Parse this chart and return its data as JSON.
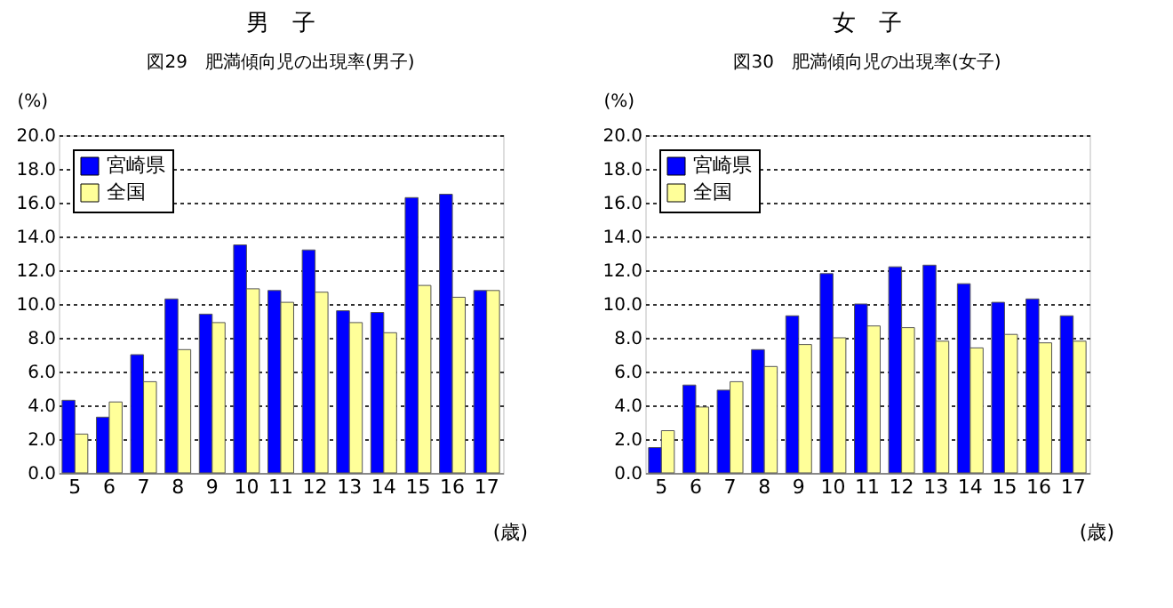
{
  "chart_data": [
    {
      "type": "bar",
      "title": "男　子",
      "subtitle": "図29　肥満傾向児の出現率(男子)",
      "ylabel": "(%)",
      "xlabel": "(歳)",
      "categories": [
        "5",
        "6",
        "7",
        "8",
        "9",
        "10",
        "11",
        "12",
        "13",
        "14",
        "15",
        "16",
        "17"
      ],
      "series": [
        {
          "name": "宮崎県",
          "color": "#0000ff",
          "values": [
            4.3,
            3.3,
            7.0,
            10.3,
            9.4,
            13.5,
            10.8,
            13.2,
            9.6,
            9.5,
            16.3,
            16.5,
            10.8
          ]
        },
        {
          "name": "全国",
          "color": "#ffff99",
          "values": [
            2.3,
            4.2,
            5.4,
            7.3,
            8.9,
            10.9,
            10.1,
            10.7,
            8.9,
            8.3,
            11.1,
            10.4,
            10.8
          ]
        }
      ],
      "ylim": [
        0,
        20
      ],
      "yticks": [
        {
          "value": 0,
          "label": "0.0"
        },
        {
          "value": 2,
          "label": "2.0"
        },
        {
          "value": 4,
          "label": "4.0"
        },
        {
          "value": 6,
          "label": "6.0"
        },
        {
          "value": 8,
          "label": "8.0"
        },
        {
          "value": 10,
          "label": "10.0"
        },
        {
          "value": 12,
          "label": "12.0"
        },
        {
          "value": 14,
          "label": "14.0"
        },
        {
          "value": 16,
          "label": "16.0"
        },
        {
          "value": 18,
          "label": "18.0"
        },
        {
          "value": 20,
          "label": "20.0"
        }
      ],
      "grid": "y",
      "legend": "top left"
    },
    {
      "type": "bar",
      "title": "女　子",
      "subtitle": "図30　肥満傾向児の出現率(女子)",
      "ylabel": "(%)",
      "xlabel": "(歳)",
      "categories": [
        "5",
        "6",
        "7",
        "8",
        "9",
        "10",
        "11",
        "12",
        "13",
        "14",
        "15",
        "16",
        "17"
      ],
      "series": [
        {
          "name": "宮崎県",
          "color": "#0000ff",
          "values": [
            1.5,
            5.2,
            4.9,
            7.3,
            9.3,
            11.8,
            10.0,
            12.2,
            12.3,
            11.2,
            10.1,
            10.3,
            9.3
          ]
        },
        {
          "name": "全国",
          "color": "#ffff99",
          "values": [
            2.5,
            3.9,
            5.4,
            6.3,
            7.6,
            8.0,
            8.7,
            8.6,
            7.8,
            7.4,
            8.2,
            7.7,
            7.8
          ]
        }
      ],
      "ylim": [
        0,
        20
      ],
      "yticks": [
        {
          "value": 0,
          "label": "0.0"
        },
        {
          "value": 2,
          "label": "2.0"
        },
        {
          "value": 4,
          "label": "4.0"
        },
        {
          "value": 6,
          "label": "6.0"
        },
        {
          "value": 8,
          "label": "8.0"
        },
        {
          "value": 10,
          "label": "10.0"
        },
        {
          "value": 12,
          "label": "12.0"
        },
        {
          "value": 14,
          "label": "14.0"
        },
        {
          "value": 16,
          "label": "16.0"
        },
        {
          "value": 18,
          "label": "18.0"
        },
        {
          "value": 20,
          "label": "20.0"
        }
      ],
      "grid": "y",
      "legend": "top left"
    }
  ]
}
